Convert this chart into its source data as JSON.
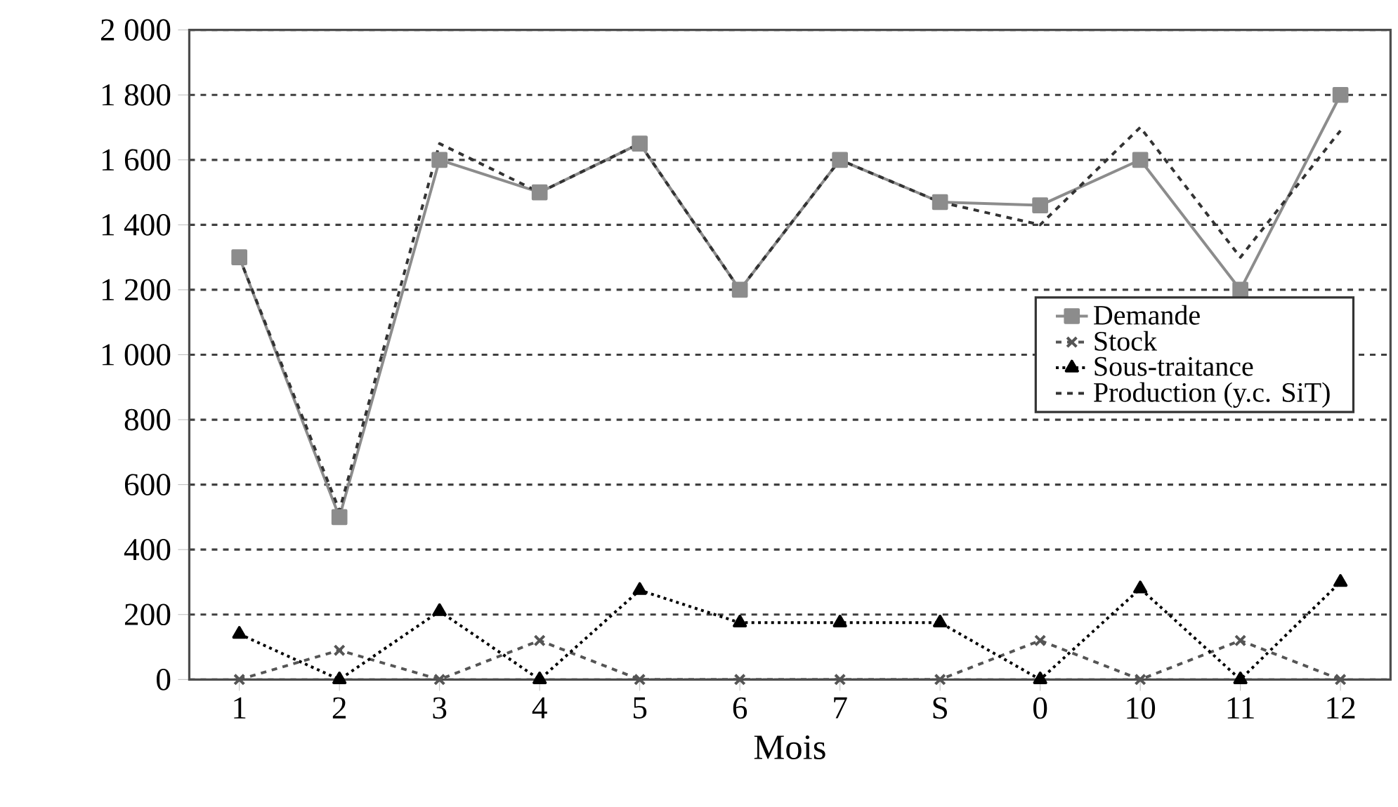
{
  "chart_data": {
    "type": "line",
    "xlabel": "Mois",
    "categories": [
      "1",
      "2",
      "3",
      "4",
      "5",
      "6",
      "7",
      "S",
      "0",
      "10",
      "11",
      "12"
    ],
    "series": [
      {
        "name": "Demande",
        "color": "#8c8c8c",
        "marker": "square",
        "line_style": "solid",
        "values": [
          1300,
          500,
          1600,
          1500,
          1650,
          1200,
          1600,
          1470,
          1460,
          1600,
          1200,
          1800
        ]
      },
      {
        "name": "Stock",
        "color": "#555555",
        "marker": "cross",
        "line_style": "dashed",
        "values": [
          0,
          90,
          0,
          120,
          0,
          0,
          0,
          0,
          120,
          0,
          120,
          0
        ]
      },
      {
        "name": "Sous-traitance",
        "color": "#000000",
        "marker": "triangle",
        "line_style": "dotted",
        "values": [
          140,
          0,
          210,
          0,
          275,
          175,
          175,
          175,
          0,
          280,
          0,
          300
        ]
      },
      {
        "name": "Production (y.c. SiT)",
        "color": "#333333",
        "marker": "none",
        "line_style": "dashed",
        "values": [
          1300,
          520,
          1650,
          1500,
          1650,
          1200,
          1600,
          1470,
          1400,
          1700,
          1300,
          1690
        ]
      }
    ],
    "ylim": [
      0,
      2000
    ],
    "yticks": [
      0,
      {
        "value": 200,
        "label": "200"
      },
      400,
      600,
      800,
      {
        "value": 1000,
        "label": "1 000"
      },
      {
        "value": 1200,
        "label": "1 200"
      },
      {
        "value": 1400,
        "label": "1 400"
      },
      {
        "value": 1600,
        "label": "1 600"
      },
      {
        "value": 1800,
        "label": "1 800"
      },
      {
        "value": 2000,
        "label": "2 000"
      }
    ],
    "grid": "y",
    "legend": "right"
  }
}
